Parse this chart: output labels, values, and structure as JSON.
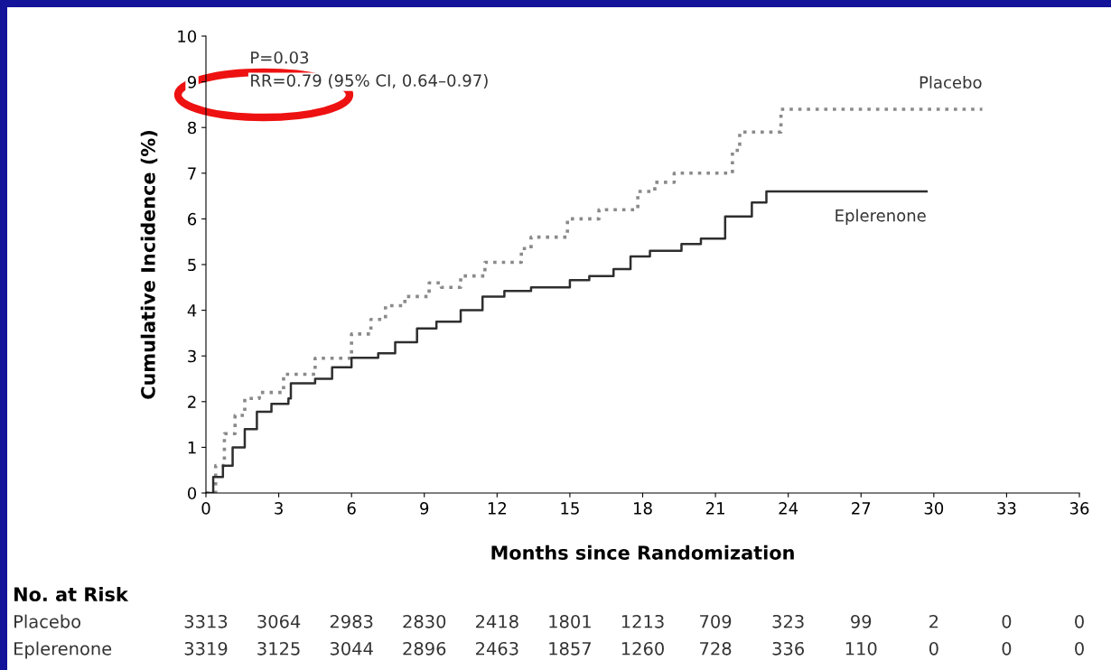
{
  "chart_data": {
    "type": "step",
    "xlabel": "Months since Randomization",
    "ylabel": "Cumulative Incidence (%)",
    "xlim": [
      0,
      36
    ],
    "ylim": [
      0,
      10
    ],
    "xticks": [
      0,
      3,
      6,
      9,
      12,
      15,
      18,
      21,
      24,
      27,
      30,
      33,
      36
    ],
    "yticks": [
      0,
      1,
      2,
      3,
      4,
      5,
      6,
      7,
      8,
      9,
      10
    ],
    "grid": false,
    "legend": false,
    "series": [
      {
        "name": "Placebo",
        "color": "#8a8a8a",
        "line_style": "dotted",
        "x": [
          0,
          0.4,
          0.76,
          1.2,
          1.6,
          2.2,
          3.2,
          4.5,
          6,
          6.8,
          7.4,
          8.2,
          9.2,
          9.7,
          10.5,
          11.5,
          13,
          13.4,
          14.9,
          16.2,
          17.8,
          18.5,
          19.3,
          21,
          21.7,
          22,
          23,
          23.7,
          32
        ],
        "values": [
          0,
          0.6,
          1.3,
          1.7,
          2.07,
          2.2,
          2.6,
          2.95,
          3.48,
          3.8,
          4.1,
          4.3,
          4.6,
          4.5,
          4.75,
          5.05,
          5.35,
          5.6,
          6.0,
          6.2,
          6.6,
          6.8,
          7.0,
          7.0,
          7.5,
          7.9,
          7.9,
          8.4,
          8.4
        ]
      },
      {
        "name": "Eplerenone",
        "color": "#2e2e2e",
        "line_style": "solid",
        "x": [
          0,
          0.3,
          0.7,
          1.1,
          1.6,
          2.1,
          2.7,
          3.4,
          3.5,
          4.5,
          5.2,
          6.0,
          7.1,
          7.8,
          8.7,
          9.5,
          10.5,
          11.4,
          12.3,
          13.4,
          15.0,
          15.8,
          16.8,
          17.5,
          18.3,
          19.6,
          20.4,
          21.4,
          22.5,
          23.1,
          29.7
        ],
        "values": [
          0,
          0.35,
          0.6,
          1.0,
          1.4,
          1.78,
          1.95,
          2.07,
          2.4,
          2.5,
          2.75,
          2.96,
          3.06,
          3.3,
          3.6,
          3.75,
          4.0,
          4.3,
          4.42,
          4.5,
          4.66,
          4.75,
          4.9,
          5.18,
          5.3,
          5.45,
          5.57,
          6.05,
          6.36,
          6.6,
          6.6
        ]
      }
    ],
    "annotations": [
      "P=0.03",
      "RR=0.79 (95% CI, 0.64–0.97)",
      "No. at Risk",
      "Placebo",
      "3313",
      "3064",
      "2983",
      "2830",
      "2418",
      "1801",
      "1213",
      "709",
      "323",
      "99",
      "2",
      "0",
      "0",
      "Eplerenone",
      "3319",
      "3125",
      "3044",
      "2896",
      "2463",
      "1857",
      "1260",
      "728",
      "336",
      "110",
      "0",
      "0",
      "0"
    ]
  }
}
